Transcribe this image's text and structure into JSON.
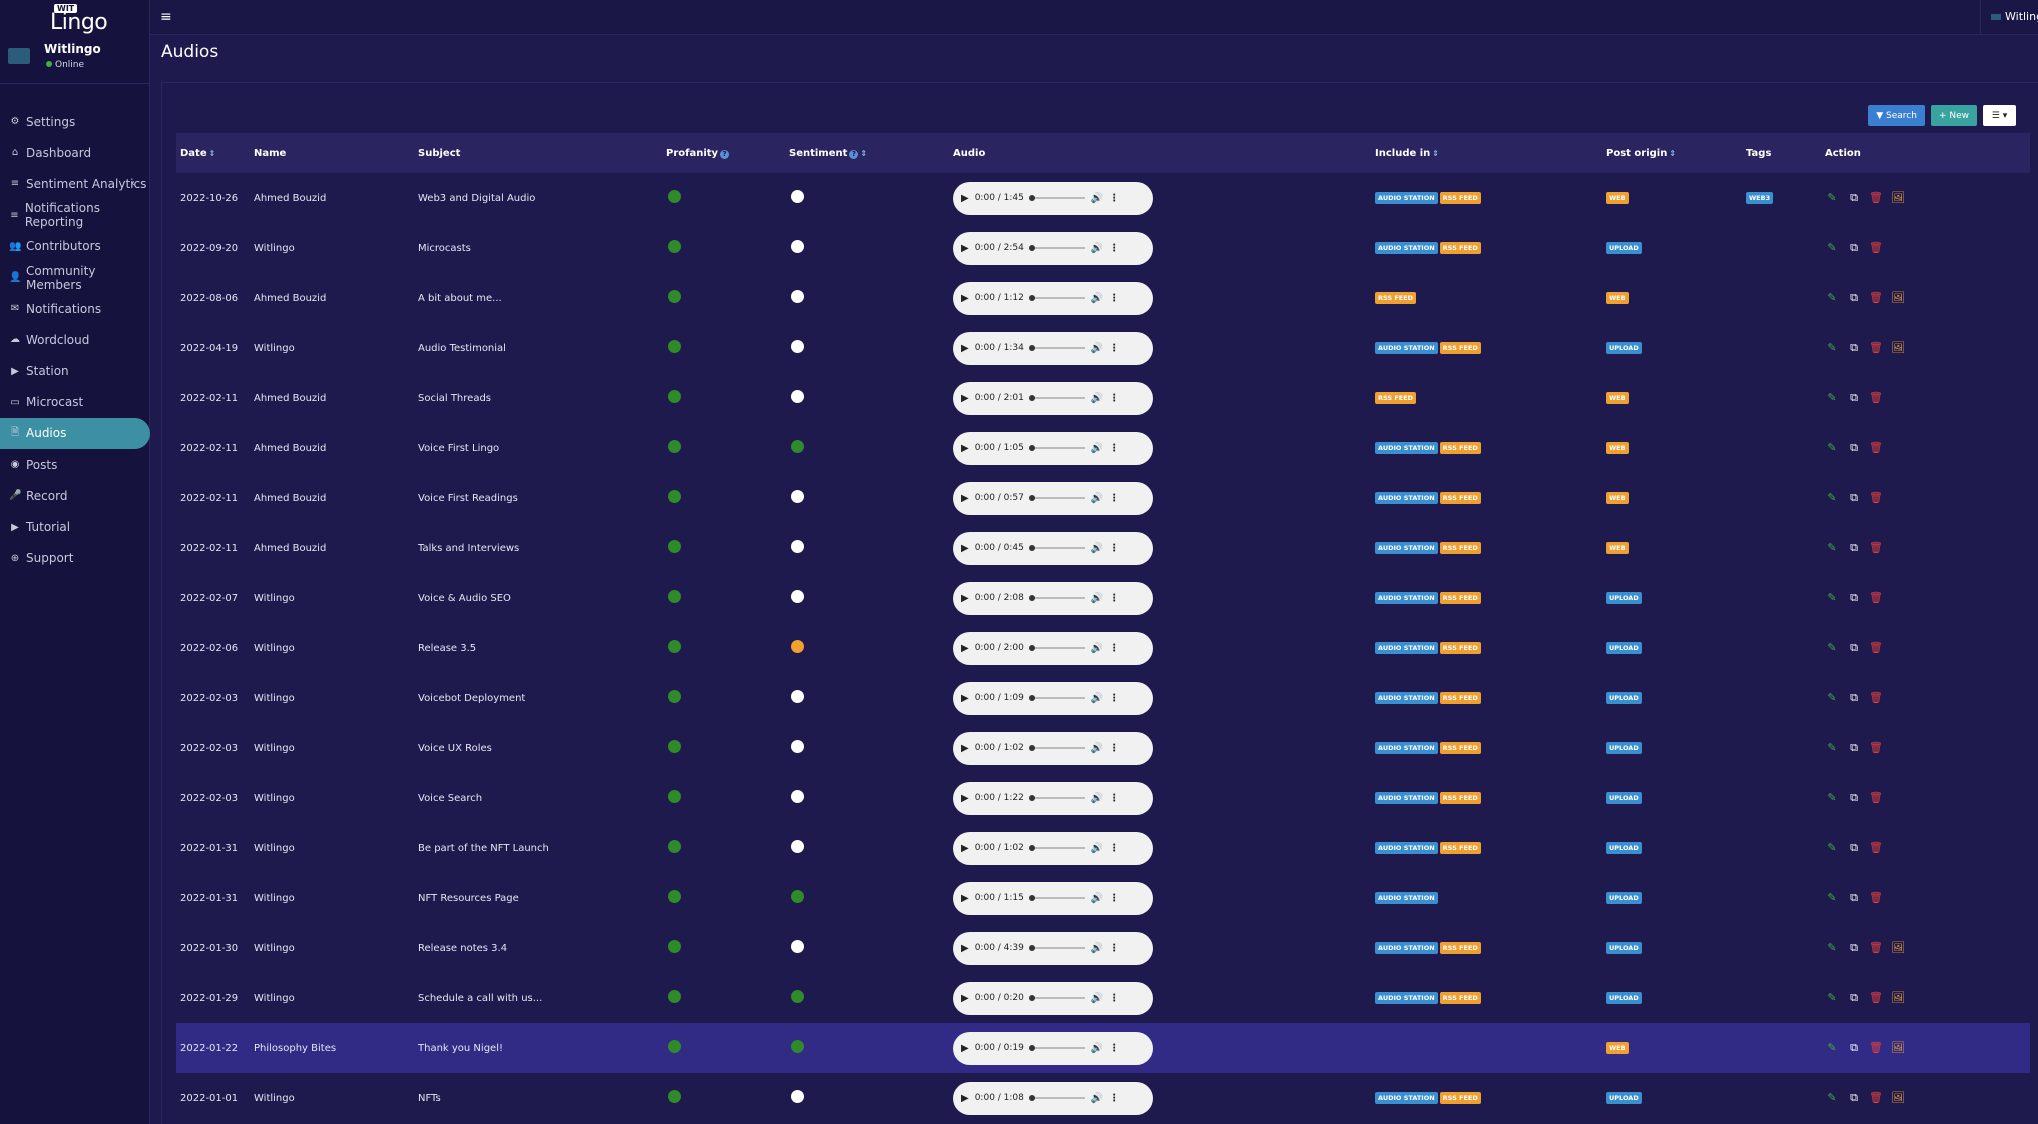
{
  "brand": {
    "wit": "WIT",
    "lingo": "Lingo"
  },
  "user": {
    "name": "Witlingo",
    "status": "Online"
  },
  "topbar": {
    "username": "Witlingo"
  },
  "sidebar": {
    "items": [
      {
        "label": "Settings",
        "icon": "gear-icon",
        "glyph": "⚙"
      },
      {
        "label": "Dashboard",
        "icon": "home-icon",
        "glyph": "⌂"
      },
      {
        "label": "Sentiment Analytics",
        "icon": "list-icon",
        "glyph": "≡"
      },
      {
        "label": "Notifications Reporting",
        "icon": "list-icon",
        "glyph": "≡"
      },
      {
        "label": "Contributors",
        "icon": "users-icon",
        "glyph": "👥"
      },
      {
        "label": "Community Members",
        "icon": "user-icon",
        "glyph": "👤"
      },
      {
        "label": "Notifications",
        "icon": "envelope-icon",
        "glyph": "✉"
      },
      {
        "label": "Wordcloud",
        "icon": "cloud-icon",
        "glyph": "☁"
      },
      {
        "label": "Station",
        "icon": "play-icon",
        "glyph": "▶"
      },
      {
        "label": "Microcast",
        "icon": "monitor-icon",
        "glyph": "▭"
      },
      {
        "label": "Audios",
        "icon": "file-audio-icon",
        "glyph": "🗎"
      },
      {
        "label": "Posts",
        "icon": "post-icon",
        "glyph": "◉"
      },
      {
        "label": "Record",
        "icon": "microphone-icon",
        "glyph": "🎤"
      },
      {
        "label": "Tutorial",
        "icon": "video-icon",
        "glyph": "▶"
      },
      {
        "label": "Support",
        "icon": "support-icon",
        "glyph": "⊕"
      }
    ]
  },
  "page": {
    "title": "Audios"
  },
  "toolbar": {
    "search_label": "Search",
    "new_label": "New",
    "view_label": "☰ ▾"
  },
  "table": {
    "headers": {
      "date": "Date",
      "name": "Name",
      "subject": "Subject",
      "profanity": "Profanity",
      "sentiment": "Sentiment",
      "audio": "Audio",
      "include": "Include in",
      "origin": "Post origin",
      "tags": "Tags",
      "action": "Action"
    },
    "rows": [
      {
        "date": "2022-10-26",
        "name": "Ahmed Bouzid",
        "subject": "Web3 and Digital Audio",
        "profanity": "green",
        "sentiment": "white",
        "time": "0:00 / 1:45",
        "include": [
          "AUDIO STATION",
          "RSS FEED"
        ],
        "origin": "WEB",
        "tags": "WEB3",
        "image": true
      },
      {
        "date": "2022-09-20",
        "name": "Witlingo",
        "subject": "Microcasts",
        "profanity": "green",
        "sentiment": "white",
        "time": "0:00 / 2:54",
        "include": [
          "AUDIO STATION",
          "RSS FEED"
        ],
        "origin": "UPLOAD",
        "tags": "",
        "image": false
      },
      {
        "date": "2022-08-06",
        "name": "Ahmed Bouzid",
        "subject": "A bit about me...",
        "profanity": "green",
        "sentiment": "white",
        "time": "0:00 / 1:12",
        "include": [
          "RSS FEED"
        ],
        "origin": "WEB",
        "tags": "",
        "image": true
      },
      {
        "date": "2022-04-19",
        "name": "Witlingo",
        "subject": "Audio Testimonial",
        "profanity": "green",
        "sentiment": "white",
        "time": "0:00 / 1:34",
        "include": [
          "AUDIO STATION",
          "RSS FEED"
        ],
        "origin": "UPLOAD",
        "tags": "",
        "image": true
      },
      {
        "date": "2022-02-11",
        "name": "Ahmed Bouzid",
        "subject": "Social Threads",
        "profanity": "green",
        "sentiment": "white",
        "time": "0:00 / 2:01",
        "include": [
          "RSS FEED"
        ],
        "origin": "WEB",
        "tags": "",
        "image": false
      },
      {
        "date": "2022-02-11",
        "name": "Ahmed Bouzid",
        "subject": "Voice First Lingo",
        "profanity": "green",
        "sentiment": "green",
        "time": "0:00 / 1:05",
        "include": [
          "AUDIO STATION",
          "RSS FEED"
        ],
        "origin": "WEB",
        "tags": "",
        "image": false
      },
      {
        "date": "2022-02-11",
        "name": "Ahmed Bouzid",
        "subject": "Voice First Readings",
        "profanity": "green",
        "sentiment": "white",
        "time": "0:00 / 0:57",
        "include": [
          "AUDIO STATION",
          "RSS FEED"
        ],
        "origin": "WEB",
        "tags": "",
        "image": false
      },
      {
        "date": "2022-02-11",
        "name": "Ahmed Bouzid",
        "subject": "Talks and Interviews",
        "profanity": "green",
        "sentiment": "white",
        "time": "0:00 / 0:45",
        "include": [
          "AUDIO STATION",
          "RSS FEED"
        ],
        "origin": "WEB",
        "tags": "",
        "image": false
      },
      {
        "date": "2022-02-07",
        "name": "Witlingo",
        "subject": "Voice & Audio SEO",
        "profanity": "green",
        "sentiment": "white",
        "time": "0:00 / 2:08",
        "include": [
          "AUDIO STATION",
          "RSS FEED"
        ],
        "origin": "UPLOAD",
        "tags": "",
        "image": false
      },
      {
        "date": "2022-02-06",
        "name": "Witlingo",
        "subject": "Release 3.5",
        "profanity": "green",
        "sentiment": "orange",
        "time": "0:00 / 2:00",
        "include": [
          "AUDIO STATION",
          "RSS FEED"
        ],
        "origin": "UPLOAD",
        "tags": "",
        "image": false
      },
      {
        "date": "2022-02-03",
        "name": "Witlingo",
        "subject": "Voicebot Deployment",
        "profanity": "green",
        "sentiment": "white",
        "time": "0:00 / 1:09",
        "include": [
          "AUDIO STATION",
          "RSS FEED"
        ],
        "origin": "UPLOAD",
        "tags": "",
        "image": false
      },
      {
        "date": "2022-02-03",
        "name": "Witlingo",
        "subject": "Voice UX Roles",
        "profanity": "green",
        "sentiment": "white",
        "time": "0:00 / 1:02",
        "include": [
          "AUDIO STATION",
          "RSS FEED"
        ],
        "origin": "UPLOAD",
        "tags": "",
        "image": false
      },
      {
        "date": "2022-02-03",
        "name": "Witlingo",
        "subject": "Voice Search",
        "profanity": "green",
        "sentiment": "white",
        "time": "0:00 / 1:22",
        "include": [
          "AUDIO STATION",
          "RSS FEED"
        ],
        "origin": "UPLOAD",
        "tags": "",
        "image": false
      },
      {
        "date": "2022-01-31",
        "name": "Witlingo",
        "subject": "Be part of the NFT Launch",
        "profanity": "green",
        "sentiment": "white",
        "time": "0:00 / 1:02",
        "include": [
          "AUDIO STATION",
          "RSS FEED"
        ],
        "origin": "UPLOAD",
        "tags": "",
        "image": false
      },
      {
        "date": "2022-01-31",
        "name": "Witlingo",
        "subject": "NFT Resources Page",
        "profanity": "green",
        "sentiment": "green",
        "time": "0:00 / 1:15",
        "include": [
          "AUDIO STATION"
        ],
        "origin": "UPLOAD",
        "tags": "",
        "image": false
      },
      {
        "date": "2022-01-30",
        "name": "Witlingo",
        "subject": "Release notes 3.4",
        "profanity": "green",
        "sentiment": "white",
        "time": "0:00 / 4:39",
        "include": [
          "AUDIO STATION",
          "RSS FEED"
        ],
        "origin": "UPLOAD",
        "tags": "",
        "image": true
      },
      {
        "date": "2022-01-29",
        "name": "Witlingo",
        "subject": "Schedule a call with us...",
        "profanity": "green",
        "sentiment": "green",
        "time": "0:00 / 0:20",
        "include": [
          "AUDIO STATION",
          "RSS FEED"
        ],
        "origin": "UPLOAD",
        "tags": "",
        "image": true
      },
      {
        "date": "2022-01-22",
        "name": "Philosophy Bites",
        "subject": "Thank you Nigel!",
        "profanity": "green",
        "sentiment": "green",
        "time": "0:00 / 0:19",
        "include": [],
        "origin": "WEB",
        "tags": "",
        "image": true,
        "highlight": true
      },
      {
        "date": "2022-01-01",
        "name": "Witlingo",
        "subject": "NFTs",
        "profanity": "green",
        "sentiment": "white",
        "time": "0:00 / 1:08",
        "include": [
          "AUDIO STATION",
          "RSS FEED"
        ],
        "origin": "UPLOAD",
        "tags": "",
        "image": true
      }
    ]
  }
}
